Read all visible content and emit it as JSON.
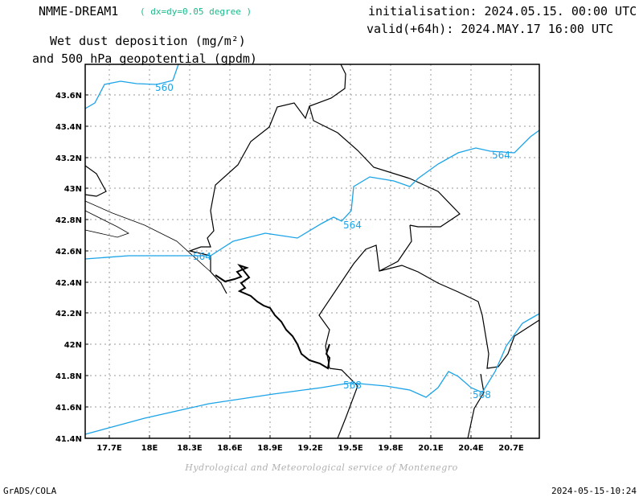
{
  "header": {
    "model_name": "NMME-DREAM1",
    "resolution": "( dx=dy=0.05 degree )",
    "initialisation": "initialisation: 2024.05.15. 00:00 UTC",
    "valid": "valid(+64h): 2024.MAY.17 16:00 UTC",
    "title_line1": "Wet dust deposition (mg/m²)",
    "title_line2": "and 500 hPa geopotential (gpdm)"
  },
  "map": {
    "lat_ticks": [
      "43.6N",
      "43.4N",
      "43.2N",
      "43N",
      "42.8N",
      "42.6N",
      "42.4N",
      "42.2N",
      "42N",
      "41.8N",
      "41.6N",
      "41.4N"
    ],
    "lon_ticks": [
      "17.7E",
      "18E",
      "18.3E",
      "18.6E",
      "18.9E",
      "19.2E",
      "19.5E",
      "19.8E",
      "20.1E",
      "20.4E",
      "20.7E"
    ],
    "contour_labels": [
      "560",
      "564",
      "564",
      "564",
      "568",
      "568"
    ],
    "colors": {
      "contour": "#1ba3e8",
      "border": "#000000",
      "grid": "#9a9a9a",
      "resolution_text": "#1db98a"
    }
  },
  "footer": {
    "credit": "Hydrological and Meteorological service of Montenegro",
    "left": "GrADS/COLA",
    "right": "2024-05-15-10:24"
  }
}
